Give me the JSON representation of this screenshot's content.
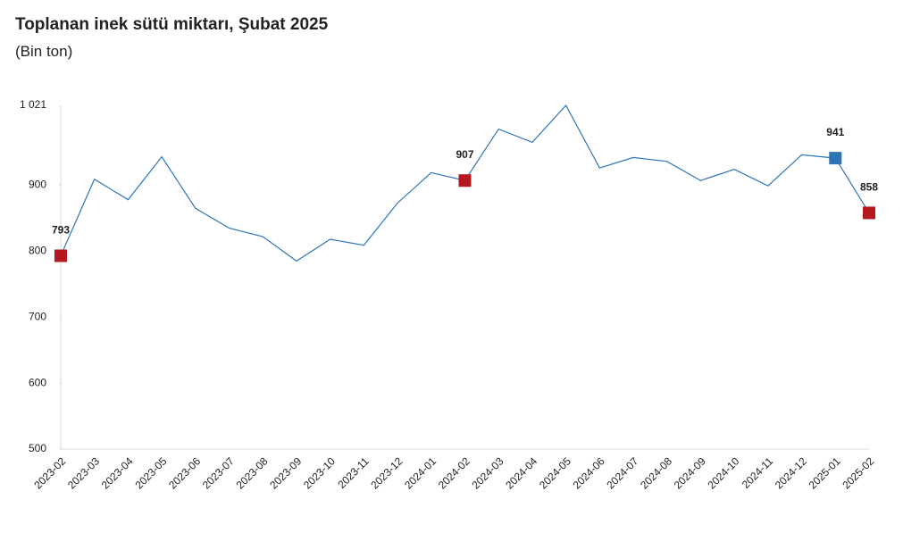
{
  "chart_data": {
    "type": "line",
    "title": "Toplanan inek sütü miktarı, Şubat 2025",
    "subtitle": "(Bin ton)",
    "categories": [
      "2023-02",
      "2023-03",
      "2023-04",
      "2023-05",
      "2023-06",
      "2023-07",
      "2023-08",
      "2023-09",
      "2023-10",
      "2023-11",
      "2023-12",
      "2024-01",
      "2024-02",
      "2024-03",
      "2024-04",
      "2024-05",
      "2024-06",
      "2024-07",
      "2024-08",
      "2024-09",
      "2024-10",
      "2024-11",
      "2024-12",
      "2025-01",
      "2025-02"
    ],
    "values": [
      793,
      909,
      878,
      943,
      865,
      835,
      822,
      785,
      818,
      809,
      873,
      919,
      907,
      985,
      965,
      1021,
      926,
      942,
      936,
      907,
      924,
      899,
      946,
      941,
      858
    ],
    "value_labels": [
      "793",
      null,
      null,
      null,
      null,
      null,
      null,
      null,
      null,
      null,
      null,
      null,
      "907",
      null,
      null,
      null,
      null,
      null,
      null,
      null,
      null,
      null,
      null,
      "941",
      "858"
    ],
    "marker_colors": [
      "#b5191f",
      null,
      null,
      null,
      null,
      null,
      null,
      null,
      null,
      null,
      null,
      null,
      "#b5191f",
      null,
      null,
      null,
      null,
      null,
      null,
      null,
      null,
      null,
      null,
      "#2e75b6",
      "#b5191f"
    ],
    "color": "#2e75b6",
    "ylim": [
      500,
      1021
    ],
    "yticks": [
      500,
      600,
      700,
      800,
      900,
      {
        "value": 1021,
        "label": "1 021"
      }
    ],
    "grid": false
  }
}
